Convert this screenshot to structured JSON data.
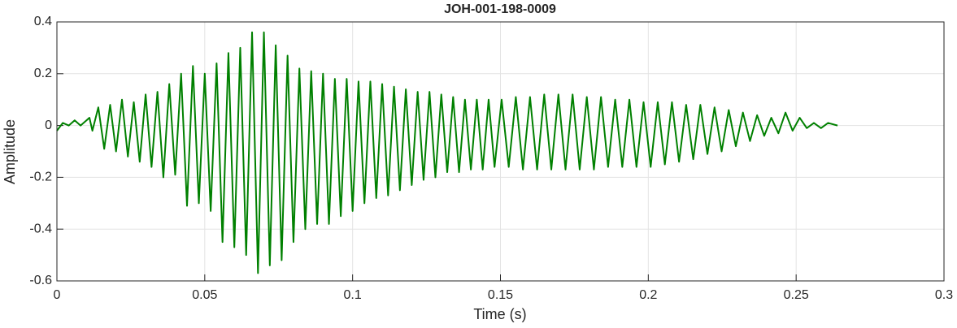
{
  "chart_data": {
    "type": "line",
    "title": "JOH-001-198-0009",
    "xlabel": "Time (s)",
    "ylabel": "Amplitude",
    "x": [
      0,
      0.002,
      0.004,
      0.006,
      0.008,
      0.01,
      0.011,
      0.012,
      0.014,
      0.016,
      0.018,
      0.02,
      0.022,
      0.024,
      0.026,
      0.028,
      0.03,
      0.032,
      0.034,
      0.036,
      0.038,
      0.04,
      0.042,
      0.044,
      0.046,
      0.048,
      0.05,
      0.052,
      0.054,
      0.056,
      0.058,
      0.06,
      0.062,
      0.064,
      0.066,
      0.068,
      0.07,
      0.072,
      0.074,
      0.076,
      0.078,
      0.08,
      0.082,
      0.084,
      0.086,
      0.088,
      0.09,
      0.092,
      0.094,
      0.096,
      0.098,
      0.1,
      0.102,
      0.104,
      0.106,
      0.108,
      0.11,
      0.112,
      0.114,
      0.116,
      0.118,
      0.12,
      0.122,
      0.124,
      0.126,
      0.128,
      0.13,
      0.132,
      0.134,
      0.136,
      0.138,
      0.14,
      0.142,
      0.144,
      0.146,
      0.148,
      0.1504,
      0.1528,
      0.1552,
      0.1576,
      0.16,
      0.1624,
      0.1648,
      0.1672,
      0.1696,
      0.172,
      0.1744,
      0.1768,
      0.1792,
      0.1816,
      0.184,
      0.1864,
      0.1888,
      0.1912,
      0.1936,
      0.196,
      0.1984,
      0.2008,
      0.2032,
      0.2056,
      0.208,
      0.2104,
      0.2128,
      0.2152,
      0.2176,
      0.22,
      0.2224,
      0.2248,
      0.2272,
      0.2296,
      0.232,
      0.2344,
      0.2368,
      0.2392,
      0.2416,
      0.244,
      0.2464,
      0.2488,
      0.2512,
      0.2536,
      0.256,
      0.2584,
      0.2608,
      0.264
    ],
    "values": [
      -0.02,
      0.01,
      0.0,
      0.02,
      0.0,
      0.02,
      0.03,
      -0.02,
      0.07,
      -0.09,
      0.08,
      -0.1,
      0.1,
      -0.12,
      0.09,
      -0.14,
      0.12,
      -0.16,
      0.13,
      -0.2,
      0.16,
      -0.19,
      0.2,
      -0.31,
      0.23,
      -0.3,
      0.2,
      -0.33,
      0.24,
      -0.45,
      0.28,
      -0.47,
      0.3,
      -0.5,
      0.36,
      -0.57,
      0.36,
      -0.54,
      0.31,
      -0.52,
      0.27,
      -0.45,
      0.22,
      -0.4,
      0.21,
      -0.38,
      0.2,
      -0.38,
      0.18,
      -0.35,
      0.18,
      -0.33,
      0.17,
      -0.3,
      0.17,
      -0.28,
      0.16,
      -0.27,
      0.15,
      -0.25,
      0.14,
      -0.23,
      0.13,
      -0.21,
      0.13,
      -0.2,
      0.12,
      -0.18,
      0.11,
      -0.18,
      0.1,
      -0.17,
      0.1,
      -0.17,
      0.1,
      -0.16,
      0.1,
      -0.16,
      0.11,
      -0.17,
      0.11,
      -0.17,
      0.12,
      -0.17,
      0.12,
      -0.17,
      0.12,
      -0.17,
      0.11,
      -0.17,
      0.11,
      -0.16,
      0.1,
      -0.16,
      0.1,
      -0.16,
      0.09,
      -0.16,
      0.09,
      -0.15,
      0.09,
      -0.14,
      0.08,
      -0.13,
      0.08,
      -0.11,
      0.07,
      -0.1,
      0.06,
      -0.08,
      0.05,
      -0.06,
      0.04,
      -0.04,
      0.03,
      -0.03,
      0.05,
      -0.02,
      0.03,
      -0.01,
      0.01,
      -0.01,
      0.01,
      0
    ],
    "color": "#008000",
    "xlim": [
      0,
      0.3
    ],
    "xticks": [
      0,
      0.05,
      0.1,
      0.15,
      0.2,
      0.25,
      0.3
    ],
    "ylim": [
      -0.6,
      0.4
    ],
    "yticks": [
      -0.6,
      -0.4,
      -0.2,
      0,
      0.2,
      0.4
    ],
    "grid": true
  }
}
